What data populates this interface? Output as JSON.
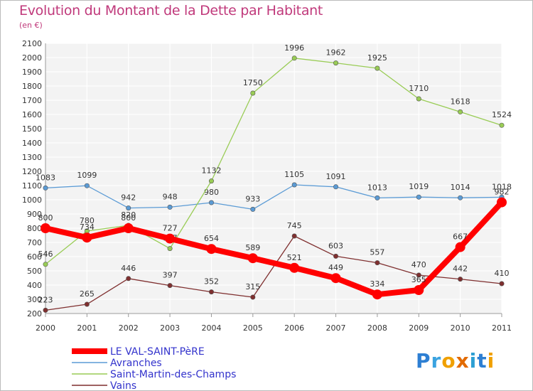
{
  "header": {
    "title": "Evolution du Montant de la Dette par Habitant",
    "subtitle": "(en €)"
  },
  "logo": {
    "text": "Proxiti"
  },
  "chart_data": {
    "type": "line",
    "title": "Evolution du Montant de la Dette par Habitant",
    "subtitle": "(en €)",
    "xlabel": "",
    "ylabel": "",
    "x": [
      "2000",
      "2001",
      "2002",
      "2003",
      "2004",
      "2005",
      "2006",
      "2007",
      "2008",
      "2009",
      "2010",
      "2011"
    ],
    "ylim": [
      200,
      2100
    ],
    "yticks": [
      "200",
      "300",
      "400",
      "500",
      "600",
      "700",
      "800",
      "900",
      "1000",
      "1100",
      "1200",
      "1300",
      "1400",
      "1500",
      "1600",
      "1700",
      "1800",
      "1900",
      "2000",
      "2100"
    ],
    "grid": true,
    "legend_position": "bottom-left",
    "series": [
      {
        "name": "LE VAL-SAINT-PèRE",
        "color": "#ff0000",
        "emphasis": true,
        "values": [
          800,
          734,
          800,
          727,
          654,
          589,
          521,
          449,
          334,
          365,
          667,
          982
        ]
      },
      {
        "name": "Avranches",
        "color": "#5b9bd5",
        "emphasis": false,
        "values": [
          1083,
          1099,
          942,
          948,
          980,
          933,
          1105,
          1091,
          1013,
          1019,
          1014,
          1018
        ]
      },
      {
        "name": "Saint-Martin-des-Champs",
        "color": "#99cc55",
        "emphasis": false,
        "values": [
          546,
          780,
          820,
          657,
          1132,
          1750,
          1996,
          1962,
          1925,
          1710,
          1618,
          1524
        ]
      },
      {
        "name": "Vains",
        "color": "#7f2f2f",
        "emphasis": false,
        "values": [
          223,
          265,
          446,
          397,
          352,
          315,
          745,
          603,
          557,
          470,
          442,
          410
        ]
      }
    ]
  }
}
